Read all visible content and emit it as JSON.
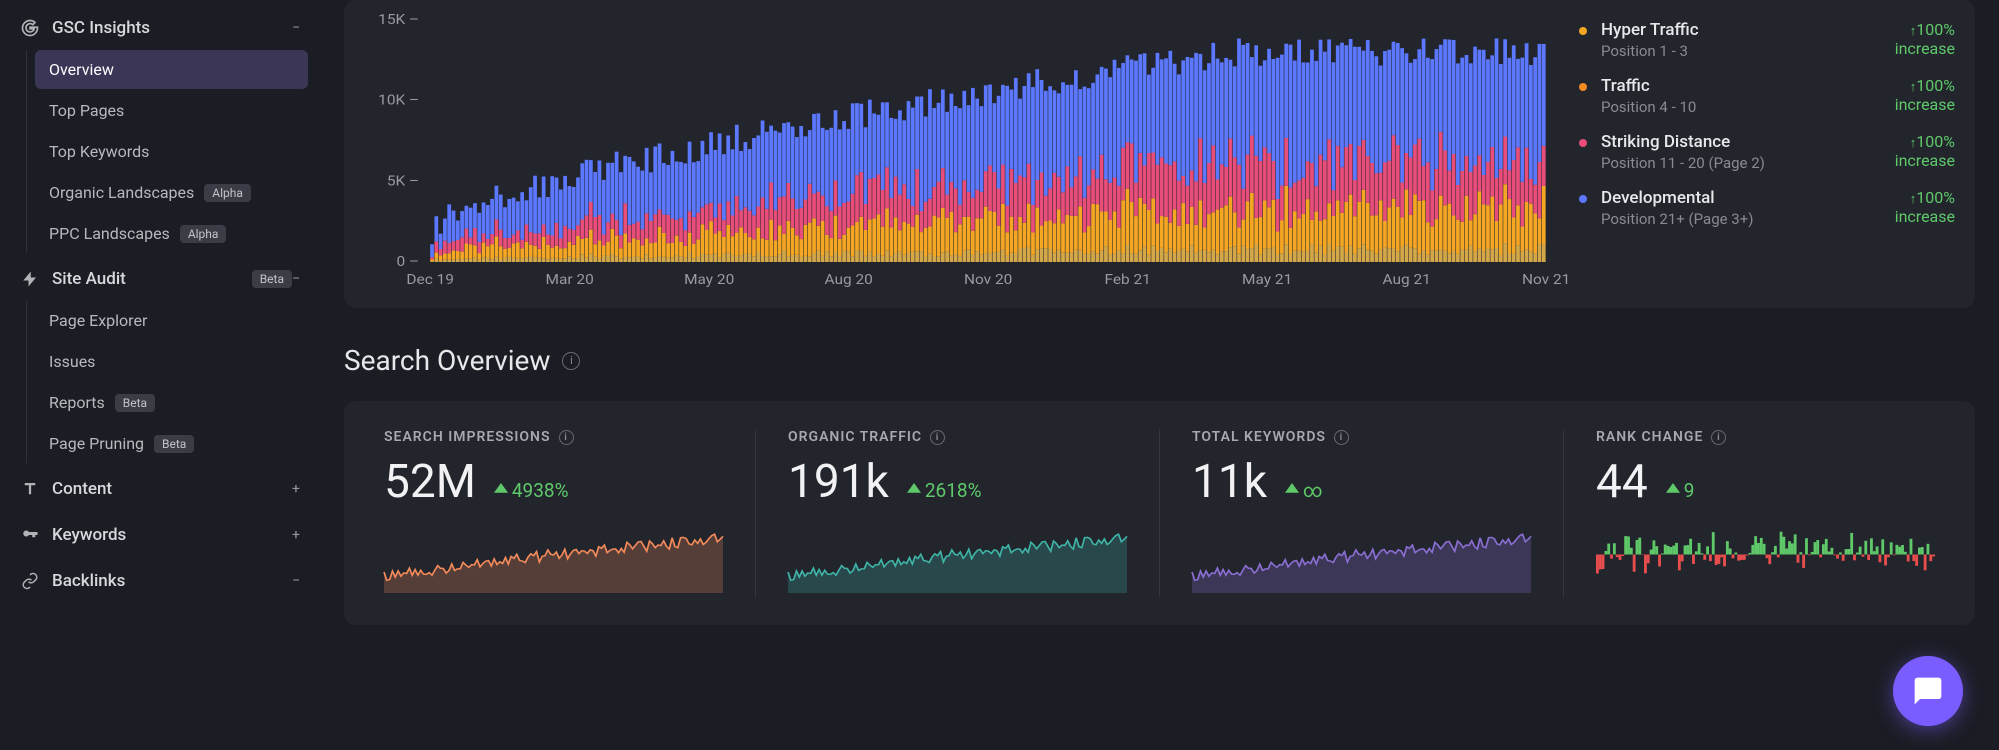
{
  "sidebar": {
    "groups": [
      {
        "label": "GSC Insights",
        "icon": "G",
        "expanded": true,
        "items": [
          {
            "label": "Overview",
            "active": true
          },
          {
            "label": "Top Pages"
          },
          {
            "label": "Top Keywords"
          },
          {
            "label": "Organic Landscapes",
            "badge": "Alpha"
          },
          {
            "label": "PPC Landscapes",
            "badge": "Alpha"
          }
        ]
      },
      {
        "label": "Site Audit",
        "badge": "Beta",
        "icon": "bolt",
        "expanded": true,
        "items": [
          {
            "label": "Page Explorer"
          },
          {
            "label": "Issues"
          },
          {
            "label": "Reports",
            "badge": "Beta"
          },
          {
            "label": "Page Pruning",
            "badge": "Beta"
          }
        ]
      },
      {
        "label": "Content",
        "icon": "T",
        "expanded": false
      },
      {
        "label": "Keywords",
        "icon": "key",
        "expanded": false
      },
      {
        "label": "Backlinks",
        "icon": "link",
        "expanded": true
      }
    ]
  },
  "main_chart": {
    "y_ticks": [
      "15K",
      "10K",
      "5K",
      "0"
    ],
    "x_ticks": [
      "Dec 19",
      "Mar 20",
      "May 20",
      "Aug 20",
      "Nov 20",
      "Feb 21",
      "May 21",
      "Aug 21",
      "Nov 21"
    ],
    "ylim": [
      0,
      15000
    ],
    "colors": {
      "bg": "#22252c",
      "grid": "#34373f",
      "series": [
        {
          "name": "developmental",
          "color": "#5b78ff"
        },
        {
          "name": "striking",
          "color": "#e94d7a"
        },
        {
          "name": "traffic",
          "color": "#f5a623"
        },
        {
          "name": "hyper",
          "color": "#d4a848"
        }
      ]
    },
    "legend": [
      {
        "dot": "#f5a623",
        "title": "Hyper Traffic",
        "sub": "Position 1 - 3",
        "change": "100%",
        "change_sub": "increase"
      },
      {
        "dot": "#f58b23",
        "title": "Traffic",
        "sub": "Position 4 - 10",
        "change": "100%",
        "change_sub": "increase"
      },
      {
        "dot": "#e94d7a",
        "title": "Striking Distance",
        "sub": "Position 11 - 20 (Page 2)",
        "change": "100%",
        "change_sub": "increase"
      },
      {
        "dot": "#5b78ff",
        "title": "Developmental",
        "sub": "Position 21+ (Page 3+)",
        "change": "100%",
        "change_sub": "increase"
      }
    ]
  },
  "section_title": "Search Overview",
  "metrics": [
    {
      "label": "SEARCH IMPRESSIONS",
      "value": "52M",
      "change": "4938%",
      "spark_color": "#f58b5b",
      "spark_fill": "#f58b5b"
    },
    {
      "label": "ORGANIC TRAFFIC",
      "value": "191k",
      "change": "2618%",
      "spark_color": "#3fb5a8",
      "spark_fill": "#3fb5a8"
    },
    {
      "label": "TOTAL KEYWORDS",
      "value": "11k",
      "change": "∞",
      "spark_color": "#8b6fd4",
      "spark_fill": "#8b6fd4"
    },
    {
      "label": "RANK CHANGE",
      "value": "44",
      "change": "9",
      "spark_color": "#5fc96a",
      "spark_neg": "#e94d4d"
    }
  ]
}
